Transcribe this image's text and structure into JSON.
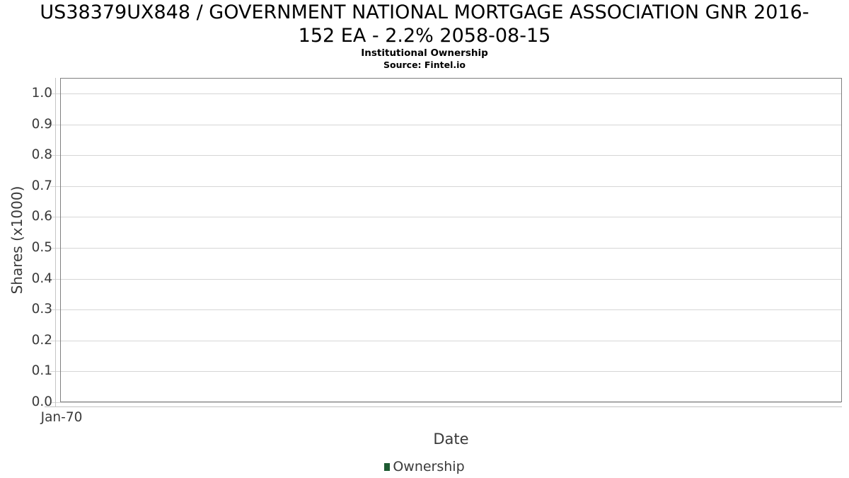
{
  "header": {
    "title": "US38379UX848 / GOVERNMENT NATIONAL MORTGAGE ASSOCIATION GNR 2016-152 EA - 2.2% 2058-08-15",
    "title_line1": "US38379UX848 / GOVERNMENT NATIONAL MORTGAGE ASSOCIATION GNR 2016-",
    "title_line2": "152 EA - 2.2% 2058-08-15",
    "subtitle": "Institutional Ownership",
    "source": "Source: Fintel.io"
  },
  "chart_data": {
    "type": "line",
    "title": "US38379UX848 / GOVERNMENT NATIONAL MORTGAGE ASSOCIATION GNR 2016-152 EA - 2.2% 2058-08-15",
    "subtitle": "Institutional Ownership",
    "source": "Source: Fintel.io",
    "xlabel": "Date",
    "ylabel": "Shares (x1000)",
    "ylim": [
      0.0,
      1.0
    ],
    "y_ticks": [
      0.0,
      0.1,
      0.2,
      0.3,
      0.4,
      0.5,
      0.6,
      0.7,
      0.8,
      0.9,
      1.0
    ],
    "y_tick_labels": [
      "0.0",
      "0.1",
      "0.2",
      "0.3",
      "0.4",
      "0.5",
      "0.6",
      "0.7",
      "0.8",
      "0.9",
      "1.0"
    ],
    "x_tick_labels": [
      "Jan-70"
    ],
    "grid": true,
    "legend_position": "bottom",
    "series": [
      {
        "name": "Ownership",
        "color": "#1e5b32",
        "x": [],
        "y": []
      }
    ]
  },
  "colors": {
    "plot_border": "#7f7f7f",
    "gridline": "#d6d6d6",
    "axis_line": "#c4c4c4",
    "axis_text": "#3a3a3a",
    "title_text": "#000000",
    "series_ownership": "#1e5b32"
  }
}
